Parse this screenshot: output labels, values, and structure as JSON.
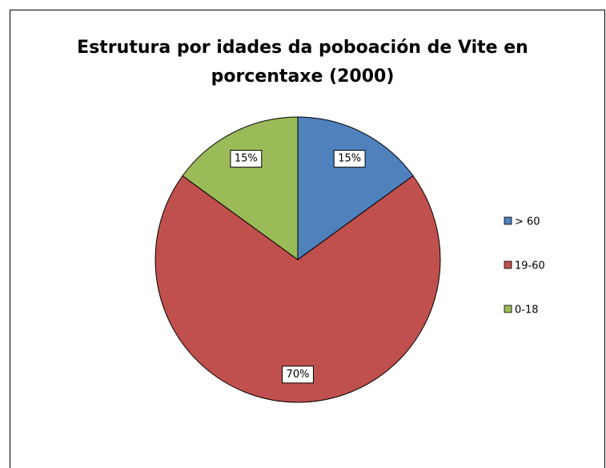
{
  "chart_data": {
    "type": "pie",
    "title": "Estrutura por idades da poboación de Vite en porcentaxe (2000)",
    "categories": [
      "> 60",
      "19-60",
      "0-18"
    ],
    "values": [
      15,
      70,
      15
    ],
    "value_labels": [
      "15%",
      "70%",
      "15%"
    ],
    "colors": [
      "#4f81bd",
      "#c0504d",
      "#9bbb59"
    ],
    "legend": "right"
  }
}
